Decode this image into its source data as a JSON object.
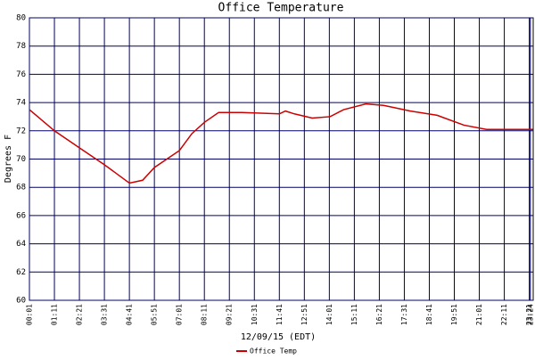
{
  "chart_data": {
    "type": "line",
    "title": "Office Temperature",
    "x_label": "12/09/15 (EDT)",
    "y_label": "Degrees F",
    "x": [
      1,
      71,
      141,
      211,
      281,
      318,
      351,
      421,
      456,
      491,
      531,
      596,
      701,
      718,
      743,
      793,
      843,
      881,
      943,
      993,
      1068,
      1143,
      1218,
      1281,
      1411
    ],
    "series": [
      {
        "name": "Office Temp",
        "color": "#cc0000",
        "values": [
          73.5,
          72.0,
          70.8,
          69.6,
          68.3,
          68.5,
          69.4,
          70.6,
          71.8,
          72.6,
          73.3,
          73.3,
          73.2,
          73.4,
          73.2,
          72.9,
          73.0,
          73.5,
          73.9,
          73.8,
          73.4,
          73.1,
          72.4,
          72.1,
          72.1
        ]
      }
    ],
    "xlim": [
      1,
      1412
    ],
    "ylim": [
      60,
      80
    ],
    "xticks": [
      {
        "value": 1,
        "label": "00:01"
      },
      {
        "value": 71,
        "label": "01:11"
      },
      {
        "value": 141,
        "label": "02:21"
      },
      {
        "value": 211,
        "label": "03:31"
      },
      {
        "value": 281,
        "label": "04:41"
      },
      {
        "value": 351,
        "label": "05:51"
      },
      {
        "value": 421,
        "label": "07:01"
      },
      {
        "value": 491,
        "label": "08:11"
      },
      {
        "value": 561,
        "label": "09:21"
      },
      {
        "value": 631,
        "label": "10:31"
      },
      {
        "value": 701,
        "label": "11:41"
      },
      {
        "value": 771,
        "label": "12:51"
      },
      {
        "value": 841,
        "label": "14:01"
      },
      {
        "value": 911,
        "label": "15:11"
      },
      {
        "value": 981,
        "label": "16:21"
      },
      {
        "value": 1051,
        "label": "17:31"
      },
      {
        "value": 1121,
        "label": "18:41"
      },
      {
        "value": 1191,
        "label": "19:51"
      },
      {
        "value": 1261,
        "label": "21:01"
      },
      {
        "value": 1331,
        "label": "22:11"
      },
      {
        "value": 1401,
        "label": "23:21"
      },
      {
        "value": 1404,
        "label": "23:24"
      }
    ],
    "yticks": [
      60,
      62,
      64,
      66,
      68,
      70,
      72,
      74,
      76,
      78,
      80
    ],
    "grid": true,
    "grid_color": "#000066"
  }
}
